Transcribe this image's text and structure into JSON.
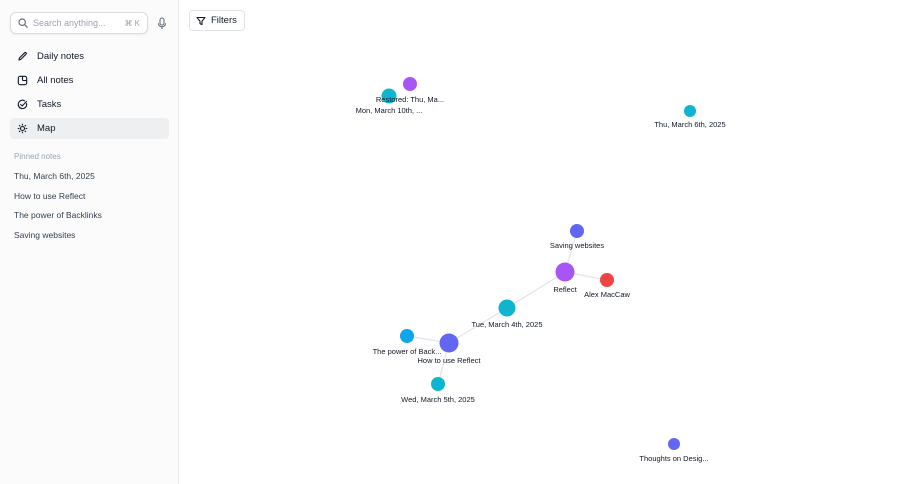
{
  "search": {
    "placeholder": "Search anything...",
    "shortcut": "⌘ K"
  },
  "nav": [
    {
      "label": "Daily notes",
      "icon": "pencil-icon"
    },
    {
      "label": "All notes",
      "icon": "notes-icon"
    },
    {
      "label": "Tasks",
      "icon": "check-circle-icon"
    },
    {
      "label": "Map",
      "icon": "map-icon",
      "active": true
    }
  ],
  "pinned": {
    "title": "Pinned notes",
    "items": [
      "Thu, March 6th, 2025",
      "How to use Reflect",
      "The power of Backlinks",
      "Saving websites"
    ]
  },
  "toolbar": {
    "filters_label": "Filters",
    "filters_icon": "filter-icon"
  },
  "graph": {
    "colors": {
      "cyan": "#0fb5d0",
      "purple": "#a855f7",
      "indigo": "#6366f1",
      "red": "#ef4444",
      "blue": "#0ea5e9",
      "edge": "#e2e4e8"
    },
    "nodes": [
      {
        "id": "restored",
        "label": "Restored: Thu, Ma...",
        "color": "#a855f7"
      },
      {
        "id": "mon",
        "label": "Mon, March 10th, ...",
        "color": "#0fb5d0"
      },
      {
        "id": "thu",
        "label": "Thu, March 6th, 2025",
        "color": "#0fb5d0"
      },
      {
        "id": "saving",
        "label": "Saving websites",
        "color": "#6366f1"
      },
      {
        "id": "reflect",
        "label": "Reflect",
        "color": "#a855f7"
      },
      {
        "id": "alex",
        "label": "Alex MacCaw",
        "color": "#ef4444"
      },
      {
        "id": "tue",
        "label": "Tue, March 4th, 2025",
        "color": "#0fb5d0"
      },
      {
        "id": "power",
        "label": "The power of Back...",
        "color": "#0ea5e9"
      },
      {
        "id": "howto",
        "label": "How to use Reflect",
        "color": "#6366f1"
      },
      {
        "id": "wed",
        "label": "Wed, March 5th, 2025",
        "color": "#0fb5d0"
      },
      {
        "id": "thoughts",
        "label": "Thoughts on Desig...",
        "color": "#6366f1"
      }
    ],
    "edges": [
      [
        "saving",
        "reflect"
      ],
      [
        "reflect",
        "alex"
      ],
      [
        "reflect",
        "tue"
      ],
      [
        "tue",
        "howto"
      ],
      [
        "howto",
        "power"
      ],
      [
        "howto",
        "wed"
      ]
    ]
  }
}
